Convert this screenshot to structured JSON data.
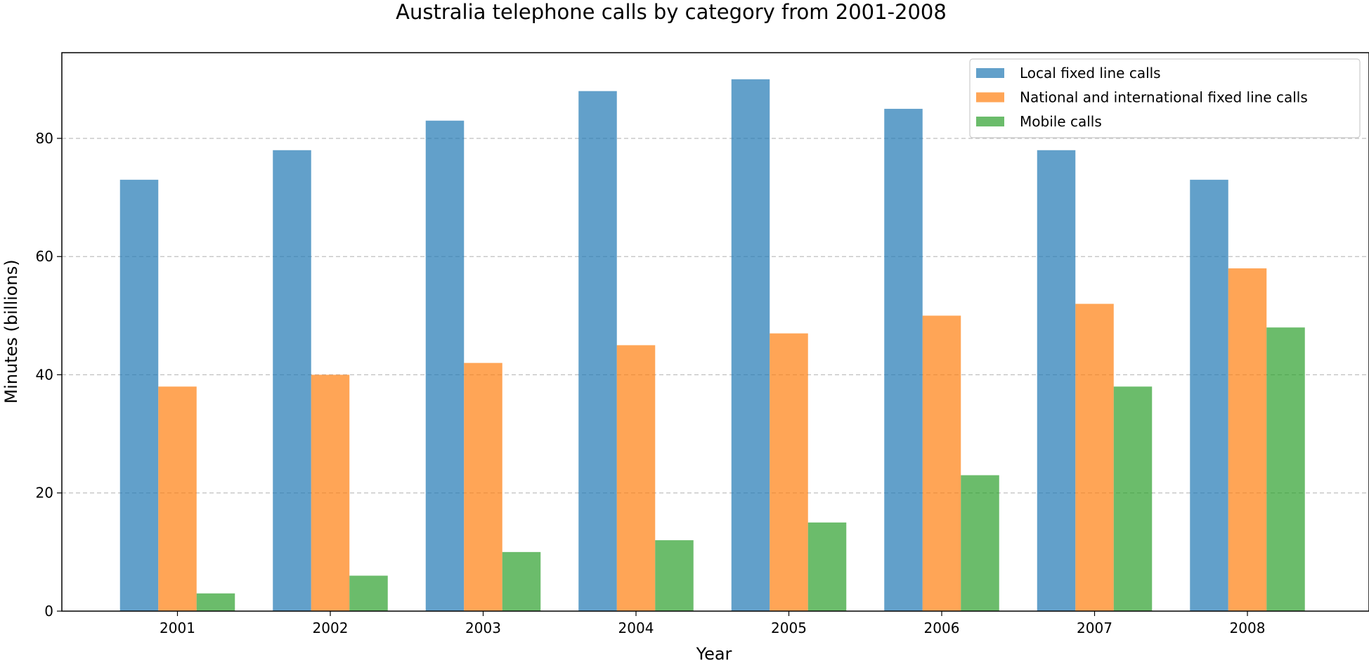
{
  "chart_data": {
    "type": "bar",
    "title": "Australia telephone calls by category from 2001-2008",
    "xlabel": "Year",
    "ylabel": "Minutes (billions)",
    "categories": [
      "2001",
      "2002",
      "2003",
      "2004",
      "2005",
      "2006",
      "2007",
      "2008"
    ],
    "series": [
      {
        "name": "Local fixed line calls",
        "color": "#1f77b4",
        "values": [
          73,
          78,
          83,
          88,
          90,
          85,
          78,
          73
        ]
      },
      {
        "name": "National and international fixed line calls",
        "color": "#ff7f0e",
        "values": [
          38,
          40,
          42,
          45,
          47,
          50,
          52,
          58
        ]
      },
      {
        "name": "Mobile calls",
        "color": "#2ca02c",
        "values": [
          3,
          6,
          10,
          12,
          15,
          23,
          38,
          48
        ]
      }
    ],
    "ylim": [
      0,
      94.5
    ],
    "yticks": [
      0,
      20,
      40,
      60,
      80
    ],
    "grid": "y-dashed",
    "legend_position": "top-right",
    "bar_opacity": 0.7
  }
}
